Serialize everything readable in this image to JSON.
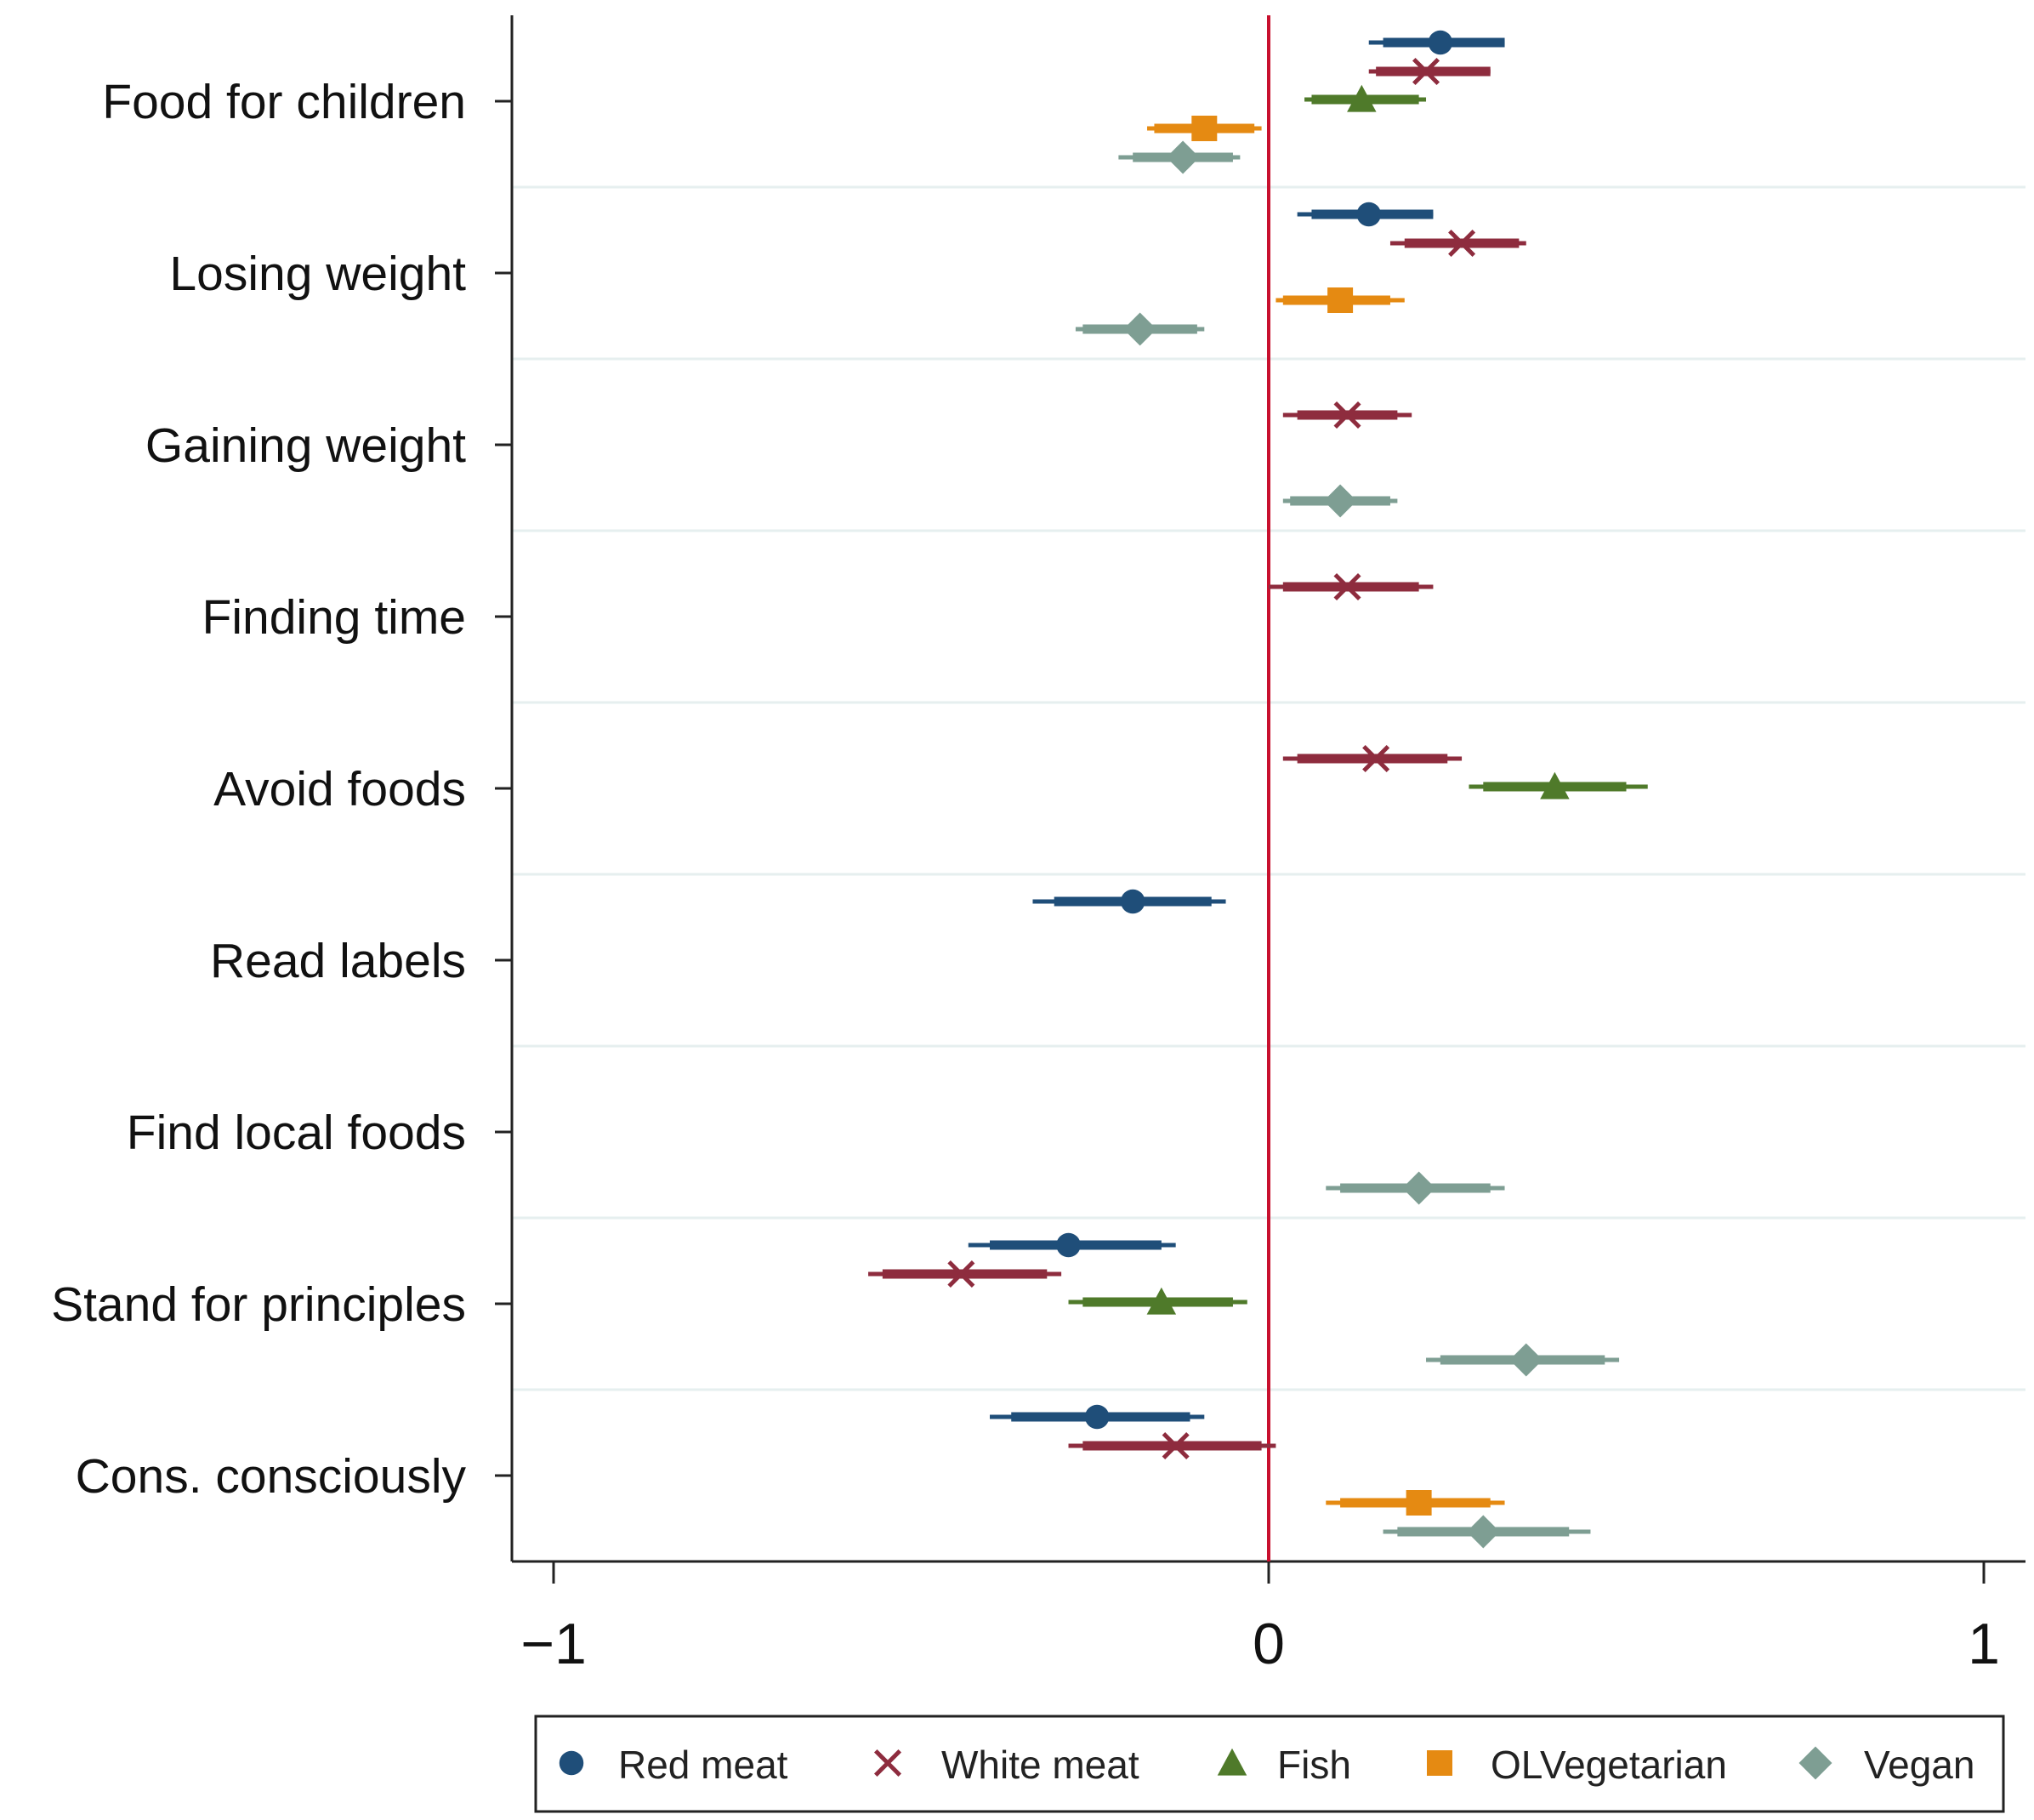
{
  "chart_data": {
    "type": "scatter",
    "subtype": "coefficient-plot",
    "title": "",
    "xlabel": "",
    "ylabel": "",
    "xlim": [
      -1.06,
      1.06
    ],
    "xticks": [
      -1,
      0,
      1
    ],
    "xtick_labels": [
      "−1",
      "0",
      "1"
    ],
    "reference_line": 0,
    "colors": {
      "red_meat": "#1f4e79",
      "white_meat": "#8e2c3e",
      "fish": "#4f7a2a",
      "olvegetarian": "#e58a12",
      "vegan": "#7e9e93",
      "reference": "#c8102e",
      "gridline": "#e6efef",
      "axis": "#222222"
    },
    "categories": [
      "Food for children",
      "Losing weight",
      "Gaining weight",
      "Finding time",
      "Avoid foods",
      "Read labels",
      "Find local foods",
      "Stand for principles",
      "Cons. consciously"
    ],
    "series": [
      {
        "name": "Red meat",
        "marker": "circle",
        "color_key": "red_meat",
        "points": [
          {
            "category": "Food for children",
            "value": 0.24,
            "ci90": [
              0.16,
              0.33
            ],
            "ci95": [
              0.14,
              0.33
            ]
          },
          {
            "category": "Losing weight",
            "value": 0.14,
            "ci90": [
              0.06,
              0.23
            ],
            "ci95": [
              0.04,
              0.23
            ]
          },
          {
            "category": "Read labels",
            "value": -0.19,
            "ci90": [
              -0.3,
              -0.08
            ],
            "ci95": [
              -0.33,
              -0.06
            ]
          },
          {
            "category": "Stand for principles",
            "value": -0.28,
            "ci90": [
              -0.39,
              -0.15
            ],
            "ci95": [
              -0.42,
              -0.13
            ]
          },
          {
            "category": "Cons. consciously",
            "value": -0.24,
            "ci90": [
              -0.36,
              -0.11
            ],
            "ci95": [
              -0.39,
              -0.09
            ]
          }
        ]
      },
      {
        "name": "White meat",
        "marker": "x",
        "color_key": "white_meat",
        "points": [
          {
            "category": "Food for children",
            "value": 0.22,
            "ci90": [
              0.15,
              0.31
            ],
            "ci95": [
              0.14,
              0.31
            ]
          },
          {
            "category": "Losing weight",
            "value": 0.27,
            "ci90": [
              0.19,
              0.35
            ],
            "ci95": [
              0.17,
              0.36
            ]
          },
          {
            "category": "Gaining weight",
            "value": 0.11,
            "ci90": [
              0.04,
              0.18
            ],
            "ci95": [
              0.02,
              0.2
            ]
          },
          {
            "category": "Finding time",
            "value": 0.11,
            "ci90": [
              0.02,
              0.21
            ],
            "ci95": [
              0.0,
              0.23
            ]
          },
          {
            "category": "Avoid foods",
            "value": 0.15,
            "ci90": [
              0.04,
              0.25
            ],
            "ci95": [
              0.02,
              0.27
            ]
          },
          {
            "category": "Stand for principles",
            "value": -0.43,
            "ci90": [
              -0.54,
              -0.31
            ],
            "ci95": [
              -0.56,
              -0.29
            ]
          },
          {
            "category": "Cons. consciously",
            "value": -0.13,
            "ci90": [
              -0.26,
              -0.01
            ],
            "ci95": [
              -0.28,
              0.01
            ]
          }
        ]
      },
      {
        "name": "Fish",
        "marker": "triangle",
        "color_key": "fish",
        "points": [
          {
            "category": "Food for children",
            "value": 0.13,
            "ci90": [
              0.06,
              0.21
            ],
            "ci95": [
              0.05,
              0.22
            ]
          },
          {
            "category": "Avoid foods",
            "value": 0.4,
            "ci90": [
              0.3,
              0.5
            ],
            "ci95": [
              0.28,
              0.53
            ]
          },
          {
            "category": "Stand for principles",
            "value": -0.15,
            "ci90": [
              -0.26,
              -0.05
            ],
            "ci95": [
              -0.28,
              -0.03
            ]
          }
        ]
      },
      {
        "name": "OLVegetarian",
        "marker": "square",
        "color_key": "olvegetarian",
        "points": [
          {
            "category": "Food for children",
            "value": -0.09,
            "ci90": [
              -0.16,
              -0.02
            ],
            "ci95": [
              -0.17,
              -0.01
            ]
          },
          {
            "category": "Losing weight",
            "value": 0.1,
            "ci90": [
              0.02,
              0.17
            ],
            "ci95": [
              0.01,
              0.19
            ]
          },
          {
            "category": "Cons. consciously",
            "value": 0.21,
            "ci90": [
              0.1,
              0.31
            ],
            "ci95": [
              0.08,
              0.33
            ]
          }
        ]
      },
      {
        "name": "Vegan",
        "marker": "diamond",
        "color_key": "vegan",
        "points": [
          {
            "category": "Food for children",
            "value": -0.12,
            "ci90": [
              -0.19,
              -0.05
            ],
            "ci95": [
              -0.21,
              -0.04
            ]
          },
          {
            "category": "Losing weight",
            "value": -0.18,
            "ci90": [
              -0.26,
              -0.1
            ],
            "ci95": [
              -0.27,
              -0.09
            ]
          },
          {
            "category": "Gaining weight",
            "value": 0.1,
            "ci90": [
              0.03,
              0.17
            ],
            "ci95": [
              0.02,
              0.18
            ]
          },
          {
            "category": "Find local foods",
            "value": 0.21,
            "ci90": [
              0.1,
              0.31
            ],
            "ci95": [
              0.08,
              0.33
            ]
          },
          {
            "category": "Stand for principles",
            "value": 0.36,
            "ci90": [
              0.24,
              0.47
            ],
            "ci95": [
              0.22,
              0.49
            ]
          },
          {
            "category": "Cons. consciously",
            "value": 0.3,
            "ci90": [
              0.18,
              0.42
            ],
            "ci95": [
              0.16,
              0.45
            ]
          }
        ]
      }
    ],
    "legend": {
      "placement": "bottom",
      "entries": [
        "Red meat",
        "White meat",
        "Fish",
        "OLVegetarian",
        "Vegan"
      ]
    }
  }
}
